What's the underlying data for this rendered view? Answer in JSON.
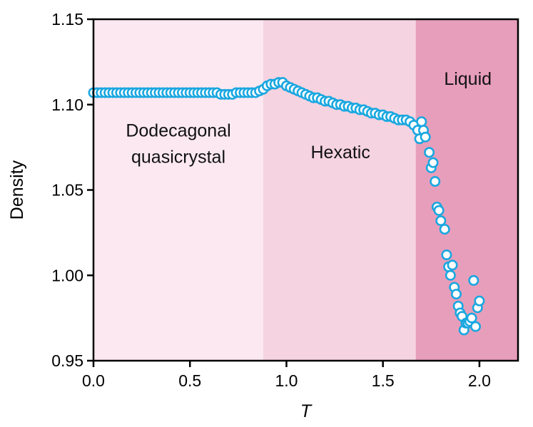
{
  "chart_data": {
    "type": "scatter",
    "title": "",
    "xlabel": "T",
    "ylabel": "Density",
    "xlim": [
      0.0,
      2.2
    ],
    "ylim": [
      0.95,
      1.15
    ],
    "x_ticks": [
      0.0,
      0.5,
      1.0,
      1.5,
      2.0
    ],
    "x_tick_labels": [
      "0.0",
      "0.5",
      "1.0",
      "1.5",
      "2.0"
    ],
    "y_ticks": [
      0.95,
      1.0,
      1.05,
      1.1,
      1.15
    ],
    "y_tick_labels": [
      "0.95",
      "1.00",
      "1.05",
      "1.10",
      "1.15"
    ],
    "colors": {
      "marker_stroke": "#1aa7e0",
      "marker_fill": "#ffffff",
      "region_quasicrystal": "#fbe8f0",
      "region_hexatic": "#f5d3e0",
      "region_liquid": "#e79ebb"
    },
    "regions": [
      {
        "name": "Dodecagonal quasicrystal",
        "lines": [
          "Dodecagonal",
          "quasicrystal"
        ],
        "x_start": 0.0,
        "x_end": 0.88,
        "label_x": 0.44,
        "label_y": 1.077
      },
      {
        "name": "Hexatic",
        "lines": [
          "Hexatic"
        ],
        "x_start": 0.88,
        "x_end": 1.67,
        "label_x": 1.28,
        "label_y": 1.072
      },
      {
        "name": "Liquid",
        "lines": [
          "Liquid"
        ],
        "x_start": 1.67,
        "x_end": 2.2,
        "label_x": 1.94,
        "label_y": 1.115
      }
    ],
    "series": [
      {
        "name": "Density",
        "x": [
          0.0,
          0.02,
          0.04,
          0.06,
          0.08,
          0.1,
          0.12,
          0.14,
          0.16,
          0.18,
          0.2,
          0.22,
          0.24,
          0.26,
          0.28,
          0.3,
          0.32,
          0.34,
          0.36,
          0.38,
          0.4,
          0.42,
          0.44,
          0.46,
          0.48,
          0.5,
          0.52,
          0.54,
          0.56,
          0.58,
          0.6,
          0.62,
          0.64,
          0.66,
          0.68,
          0.7,
          0.72,
          0.74,
          0.76,
          0.78,
          0.8,
          0.82,
          0.84,
          0.86,
          0.88,
          0.9,
          0.92,
          0.94,
          0.96,
          0.98,
          1.0,
          1.02,
          1.04,
          1.06,
          1.08,
          1.1,
          1.12,
          1.14,
          1.16,
          1.18,
          1.2,
          1.22,
          1.24,
          1.26,
          1.28,
          1.3,
          1.32,
          1.34,
          1.36,
          1.38,
          1.4,
          1.42,
          1.44,
          1.46,
          1.48,
          1.5,
          1.52,
          1.54,
          1.56,
          1.58,
          1.6,
          1.62,
          1.64,
          1.66,
          1.68,
          1.7,
          1.71,
          1.69,
          1.72,
          1.74,
          1.75,
          1.76,
          1.78,
          1.77,
          1.8,
          1.79,
          1.82,
          1.83,
          1.84,
          1.85,
          1.86,
          1.87,
          1.88,
          1.89,
          1.9,
          1.91,
          1.92,
          1.93,
          1.94,
          1.95,
          1.96,
          1.97,
          1.98,
          1.99,
          2.0
        ],
        "y": [
          1.107,
          1.107,
          1.107,
          1.107,
          1.107,
          1.107,
          1.107,
          1.107,
          1.107,
          1.107,
          1.107,
          1.107,
          1.107,
          1.107,
          1.107,
          1.107,
          1.107,
          1.107,
          1.107,
          1.107,
          1.107,
          1.107,
          1.107,
          1.107,
          1.107,
          1.107,
          1.107,
          1.107,
          1.107,
          1.107,
          1.107,
          1.107,
          1.107,
          1.106,
          1.106,
          1.106,
          1.106,
          1.107,
          1.107,
          1.107,
          1.107,
          1.107,
          1.107,
          1.108,
          1.109,
          1.111,
          1.112,
          1.112,
          1.113,
          1.113,
          1.111,
          1.11,
          1.109,
          1.108,
          1.107,
          1.106,
          1.105,
          1.104,
          1.104,
          1.103,
          1.102,
          1.102,
          1.101,
          1.1,
          1.1,
          1.099,
          1.099,
          1.098,
          1.098,
          1.097,
          1.097,
          1.096,
          1.095,
          1.095,
          1.094,
          1.094,
          1.093,
          1.093,
          1.092,
          1.091,
          1.091,
          1.091,
          1.09,
          1.088,
          1.085,
          1.09,
          1.085,
          1.08,
          1.081,
          1.072,
          1.063,
          1.066,
          1.04,
          1.055,
          1.032,
          1.038,
          1.027,
          1.012,
          1.005,
          1.0,
          1.006,
          0.993,
          0.989,
          0.982,
          0.978,
          0.976,
          0.968,
          0.972,
          0.972,
          0.973,
          0.975,
          0.997,
          0.97,
          0.981,
          0.985
        ]
      }
    ]
  }
}
